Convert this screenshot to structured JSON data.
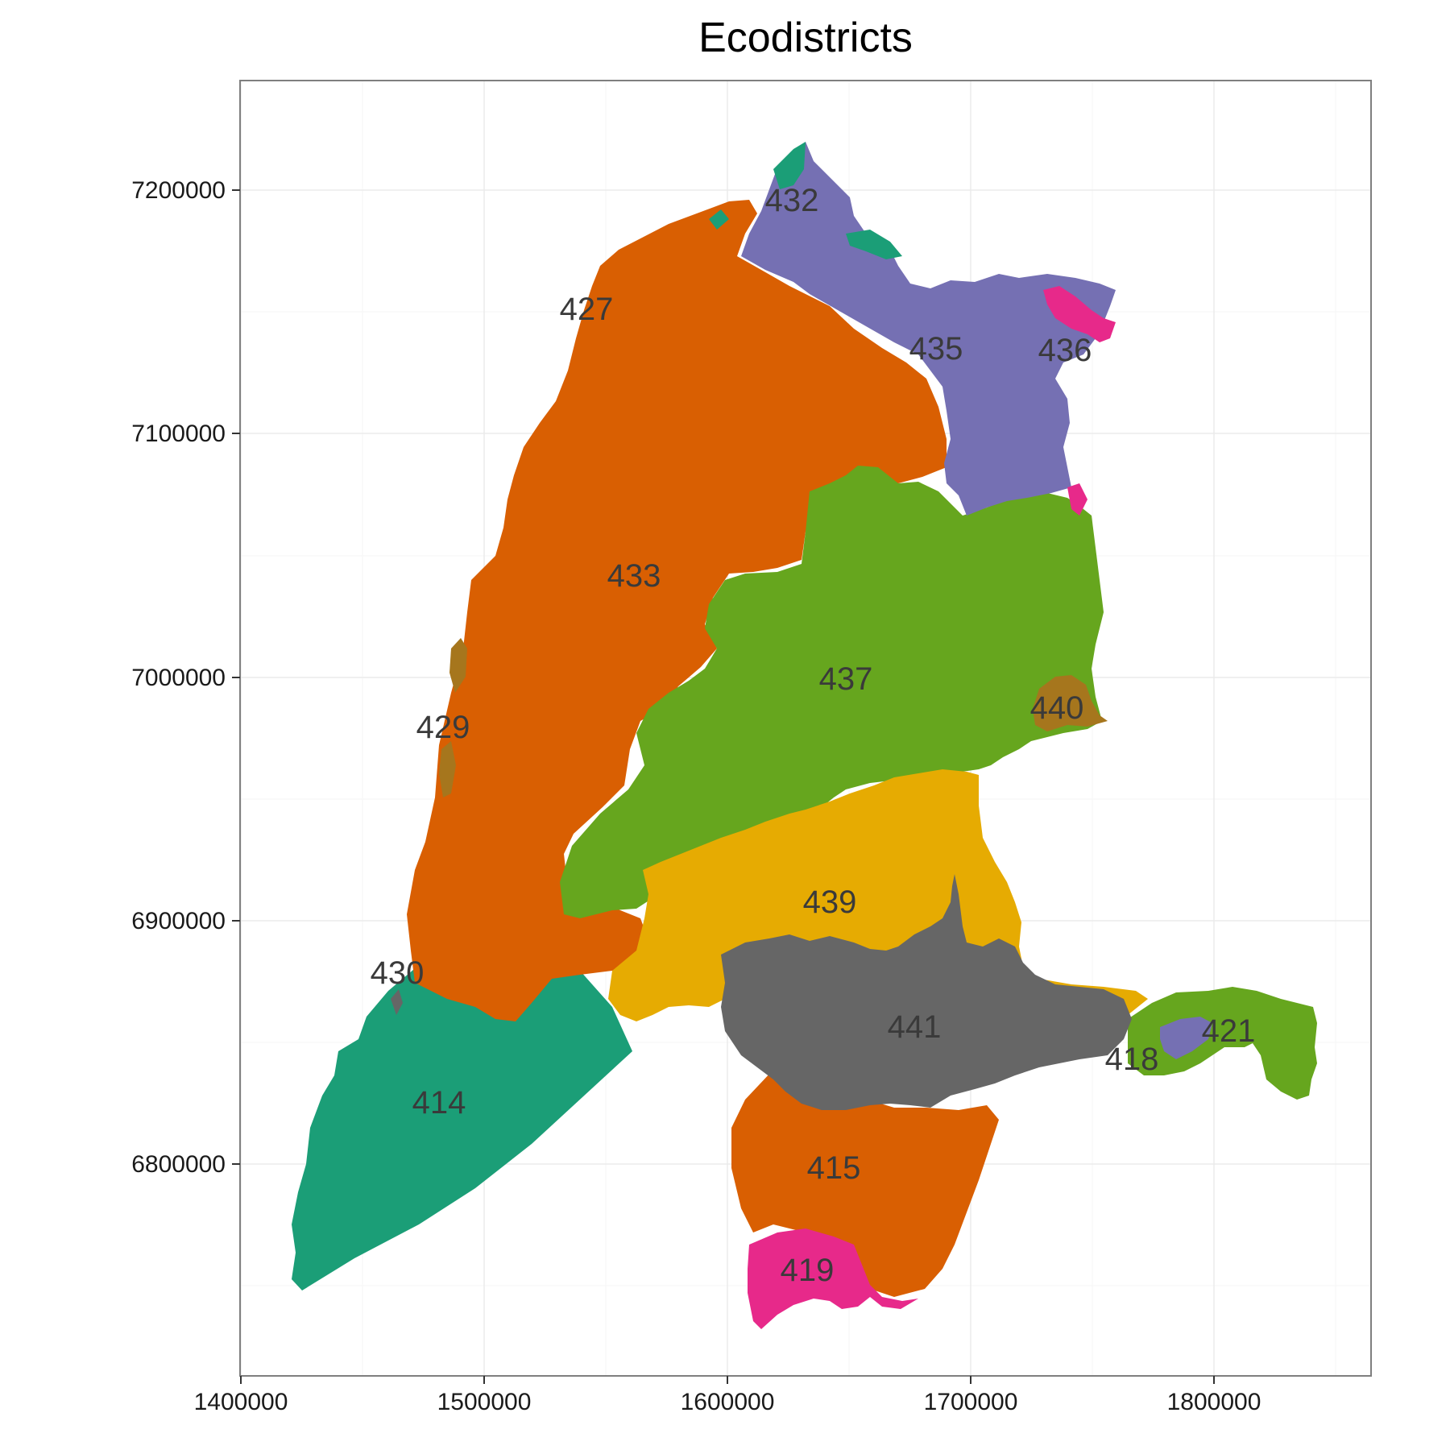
{
  "title": "Ecodistricts",
  "axes": {
    "x_ticks": [
      "1400000",
      "1500000",
      "1600000",
      "1700000",
      "1800000"
    ],
    "y_ticks": [
      "7200000",
      "7100000",
      "7000000",
      "6900000",
      "6800000"
    ]
  },
  "colors": {
    "teal": "#1b9e77",
    "orange": "#d95f02",
    "purple": "#7570b3",
    "pink": "#e7298a",
    "green": "#66a61e",
    "gold": "#e6ab02",
    "brown": "#a6761d",
    "grey": "#666666"
  },
  "regions": [
    {
      "id": "414",
      "label": "414",
      "color": "#1b9e77"
    },
    {
      "id": "415",
      "label": "415",
      "color": "#d95f02"
    },
    {
      "id": "418",
      "label": "418",
      "color": "#7570b3"
    },
    {
      "id": "419",
      "label": "419",
      "color": "#e7298a"
    },
    {
      "id": "421",
      "label": "421",
      "color": "#66a61e"
    },
    {
      "id": "427",
      "label": "427",
      "color": "#1b9e77"
    },
    {
      "id": "429",
      "label": "429",
      "color": "#a6761d"
    },
    {
      "id": "430",
      "label": "430",
      "color": "#666666"
    },
    {
      "id": "432",
      "label": "432",
      "color": "#7570b3"
    },
    {
      "id": "433",
      "label": "433",
      "color": "#d95f02"
    },
    {
      "id": "435",
      "label": "435",
      "color": "#7570b3"
    },
    {
      "id": "436",
      "label": "436",
      "color": "#e7298a"
    },
    {
      "id": "437",
      "label": "437",
      "color": "#66a61e"
    },
    {
      "id": "439",
      "label": "439",
      "color": "#e6ab02"
    },
    {
      "id": "440",
      "label": "440",
      "color": "#a6761d"
    },
    {
      "id": "441",
      "label": "441",
      "color": "#666666"
    }
  ]
}
